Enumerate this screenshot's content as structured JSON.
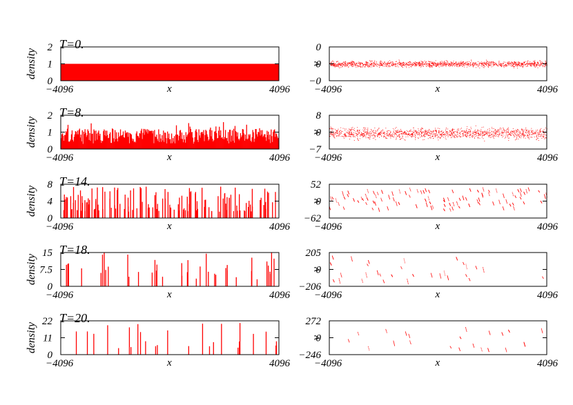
{
  "colors": {
    "series": "#ff0000",
    "axis": "#000000"
  },
  "chart_data": [
    {
      "type": "bar",
      "title": "T=0.",
      "xlabel": "x",
      "ylabel": "density",
      "xlim": [
        -4096,
        4096
      ],
      "ylim": [
        0,
        2
      ],
      "xticklabels": [
        "−4096",
        "4096"
      ],
      "yticklabels": [
        "0",
        "1",
        "2"
      ],
      "pattern": "uniform",
      "max_value": 1
    },
    {
      "type": "scatter",
      "title": "",
      "xlabel": "x",
      "ylabel": "v",
      "xlim": [
        -4096,
        4096
      ],
      "ylim": [
        -1,
        1
      ],
      "xticklabels": [
        "−4096",
        "4096"
      ],
      "yticklabels": [
        "−0",
        "0",
        "0"
      ],
      "pattern": "band",
      "spread": 0.12
    },
    {
      "type": "bar",
      "title": "T=8.",
      "xlabel": "x",
      "ylabel": "density",
      "xlim": [
        -4096,
        4096
      ],
      "ylim": [
        0,
        2
      ],
      "xticklabels": [
        "−4096",
        "4096"
      ],
      "yticklabels": [
        "0",
        "1",
        "2"
      ],
      "pattern": "noisy",
      "max_value": 1.8
    },
    {
      "type": "scatter",
      "title": "",
      "xlabel": "x",
      "ylabel": "v",
      "xlim": [
        -4096,
        4096
      ],
      "ylim": [
        -7,
        8
      ],
      "xticklabels": [
        "−4096",
        "4096"
      ],
      "yticklabels": [
        "−7",
        "0",
        "8"
      ],
      "pattern": "band",
      "spread": 3.5
    },
    {
      "type": "bar",
      "title": "T=14.",
      "xlabel": "x",
      "ylabel": "density",
      "xlim": [
        -4096,
        4096
      ],
      "ylim": [
        0,
        8
      ],
      "xticklabels": [
        "−4096",
        "4096"
      ],
      "yticklabels": [
        "0",
        "4",
        "8"
      ],
      "pattern": "spiky",
      "max_value": 7.5,
      "spikes": 140
    },
    {
      "type": "scatter",
      "title": "",
      "xlabel": "x",
      "ylabel": "v",
      "xlim": [
        -4096,
        4096
      ],
      "ylim": [
        -62,
        52
      ],
      "xticklabels": [
        "−4096",
        "4096"
      ],
      "yticklabels": [
        "−62",
        "0",
        "52"
      ],
      "pattern": "clusters",
      "clusters": 100,
      "spread": 35
    },
    {
      "type": "bar",
      "title": "T=18.",
      "xlabel": "x",
      "ylabel": "density",
      "xlim": [
        -4096,
        4096
      ],
      "ylim": [
        0,
        15
      ],
      "xticklabels": [
        "−4096",
        "4096"
      ],
      "yticklabels": [
        "0",
        "7.5",
        "15"
      ],
      "pattern": "spiky",
      "max_value": 15,
      "spikes": 40
    },
    {
      "type": "scatter",
      "title": "",
      "xlabel": "x",
      "ylabel": "v",
      "xlim": [
        -4096,
        4096
      ],
      "ylim": [
        -206,
        205
      ],
      "xticklabels": [
        "−4096",
        "4096"
      ],
      "yticklabels": [
        "−206",
        "0",
        "205"
      ],
      "pattern": "clusters",
      "clusters": 30,
      "spread": 150
    },
    {
      "type": "bar",
      "title": "T=20.",
      "xlabel": "x",
      "ylabel": "density",
      "xlim": [
        -4096,
        4096
      ],
      "ylim": [
        0,
        22
      ],
      "xticklabels": [
        "−4096",
        "4096"
      ],
      "yticklabels": [
        "0",
        "11",
        "22"
      ],
      "pattern": "spiky",
      "max_value": 21,
      "spikes": 25
    },
    {
      "type": "scatter",
      "title": "",
      "xlabel": "x",
      "ylabel": "v",
      "xlim": [
        -4096,
        4096
      ],
      "ylim": [
        -246,
        272
      ],
      "xticklabels": [
        "−4096",
        "4096"
      ],
      "yticklabels": [
        "−246",
        "0",
        "272"
      ],
      "pattern": "clusters",
      "clusters": 22,
      "spread": 180
    }
  ]
}
